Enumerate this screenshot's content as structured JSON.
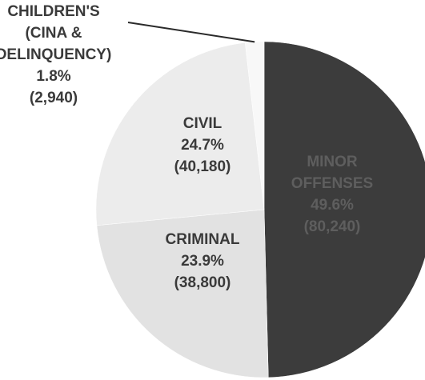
{
  "chart_data": {
    "type": "pie",
    "title": "",
    "start_angle_deg": 0,
    "direction": "clockwise",
    "slices": [
      {
        "label_lines": [
          "MINOR",
          "OFFENSES",
          "49.6%",
          "(80,240)"
        ],
        "category": "MINOR OFFENSES",
        "percent": 49.6,
        "value": 80240,
        "color": "#3c3c3c"
      },
      {
        "label_lines": [
          "CRIMINAL",
          "23.9%",
          "(38,800)"
        ],
        "category": "CRIMINAL",
        "percent": 23.9,
        "value": 38800,
        "color": "#e2e2e2"
      },
      {
        "label_lines": [
          "CIVIL",
          "24.7%",
          "(40,180)"
        ],
        "category": "CIVIL",
        "percent": 24.7,
        "value": 40180,
        "color": "#ececec"
      },
      {
        "label_lines": [
          "CHILDREN'S",
          "(CINA &",
          "DELINQUENCY)",
          "1.8%",
          "(2,940)"
        ],
        "category": "CHILDREN'S (CINA & DELINQUENCY)",
        "percent": 1.8,
        "value": 2940,
        "color": "#f8f8f8"
      }
    ]
  }
}
